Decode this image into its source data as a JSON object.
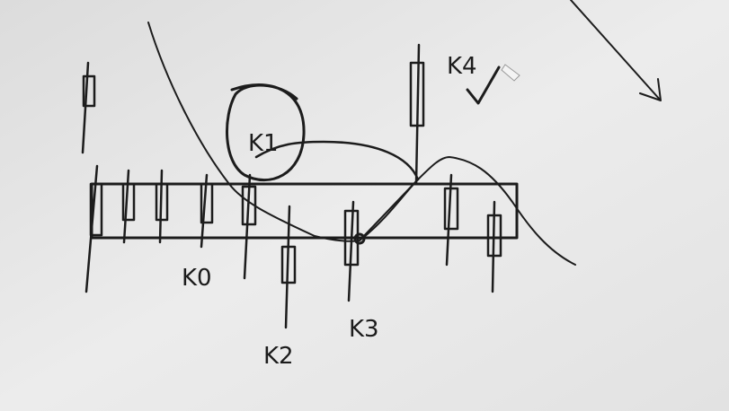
{
  "labels": [
    "K0",
    "K1",
    "K2",
    "K3",
    "K4"
  ]
}
